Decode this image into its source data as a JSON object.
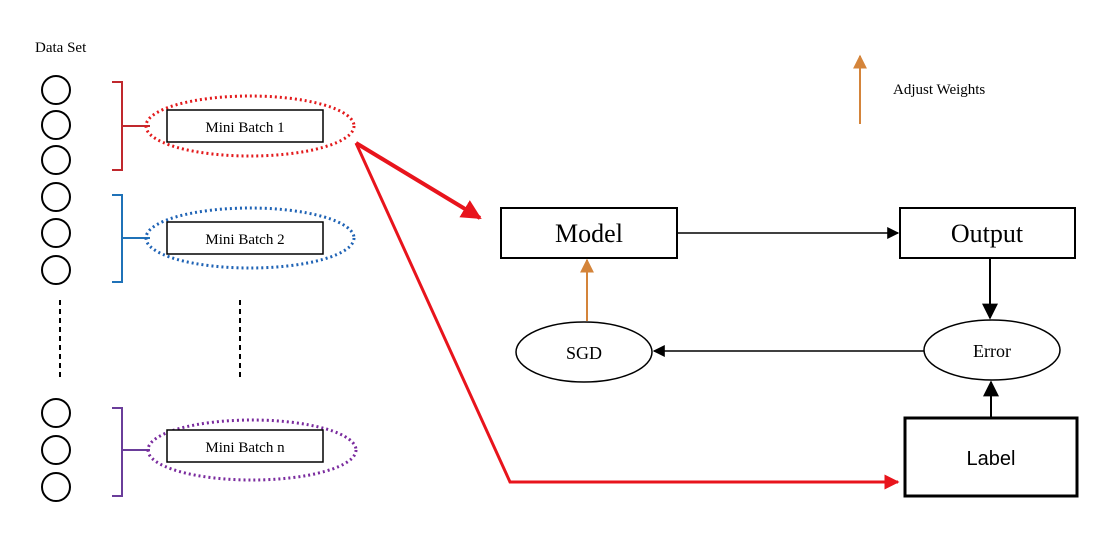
{
  "dataset": {
    "title": "Data Set",
    "groups": [
      {
        "label": "Mini Batch 1",
        "color": "#e31a1c",
        "style": "dotted"
      },
      {
        "label": "Mini Batch 2",
        "color": "#1f63b5",
        "style": "dotted"
      },
      {
        "label": "Mini Batch n",
        "color": "#7a2b9e",
        "style": "dotted"
      }
    ],
    "bracket_colors": [
      "#c0282d",
      "#1f72b8",
      "#6a3d9a"
    ]
  },
  "flow": {
    "model_label": "Model",
    "output_label": "Output",
    "error_label": "Error",
    "sgd_label": "SGD",
    "label_label": "Label"
  },
  "legend": {
    "adjust_weights_label": "Adjust Weights",
    "adjust_color": "#d4843a"
  },
  "colors": {
    "red_arrow": "#e8141c",
    "black": "#000000",
    "orange_arrow": "#d4843a"
  }
}
